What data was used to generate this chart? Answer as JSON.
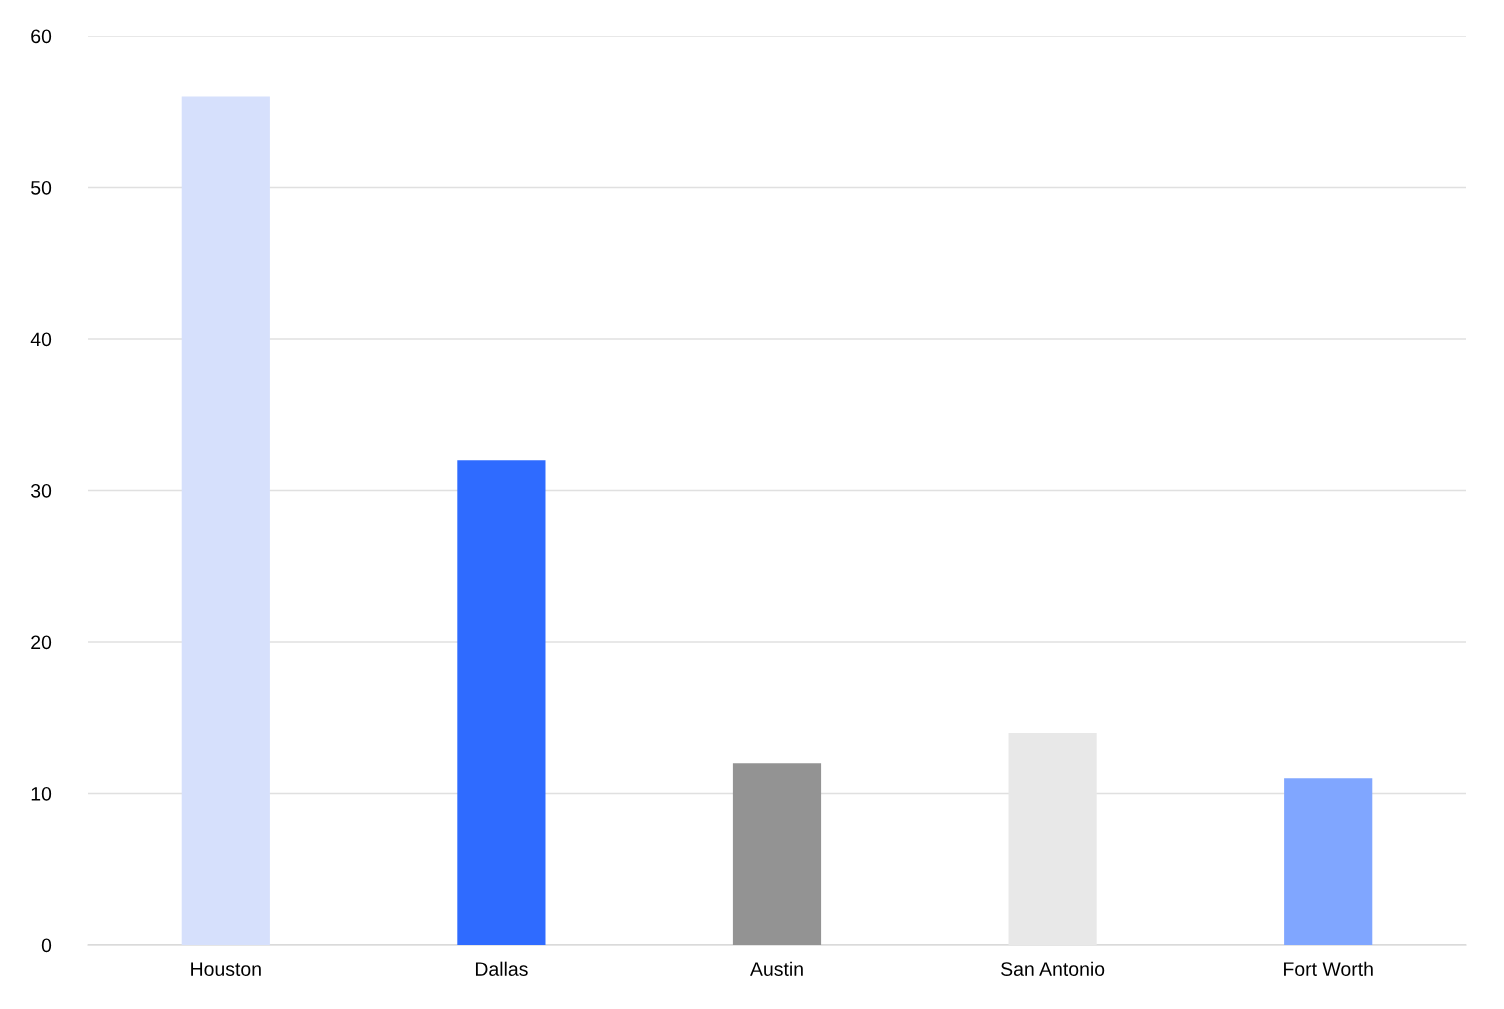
{
  "chart_data": {
    "type": "bar",
    "categories": [
      "Houston",
      "Dallas",
      "Austin",
      "San Antonio",
      "Fort Worth"
    ],
    "values": [
      56,
      32,
      12,
      14,
      11
    ],
    "colors": [
      "#d6e0fc",
      "#2f6bff",
      "#939393",
      "#e8e8e8",
      "#80a6ff"
    ],
    "ylim": [
      0,
      60
    ],
    "yticks": [
      0,
      10,
      20,
      30,
      40,
      50,
      60
    ],
    "grid": "y",
    "legend": false
  }
}
